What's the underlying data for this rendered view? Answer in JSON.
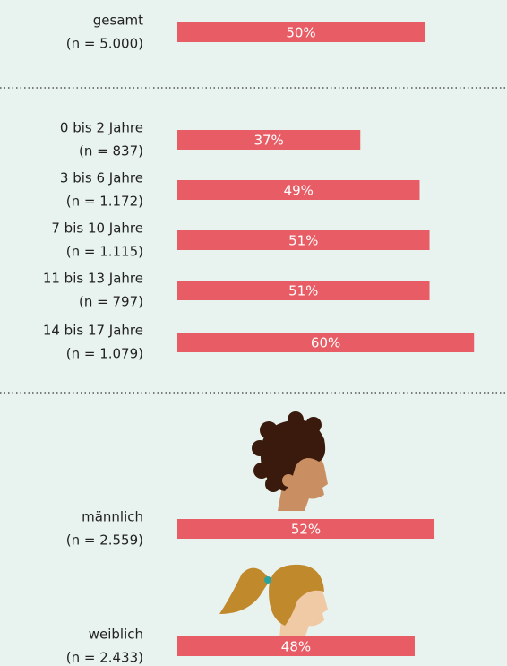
{
  "chart_data": [
    {
      "type": "bar",
      "color": "#e85d65",
      "categories": [
        "gesamt"
      ],
      "sample_labels": [
        "(n = 5.000)"
      ],
      "values": [
        50
      ],
      "value_labels": [
        "50%"
      ]
    },
    {
      "type": "bar",
      "color": "#e85d65",
      "categories": [
        "0 bis 2 Jahre",
        "3 bis 6 Jahre",
        "7 bis 10 Jahre",
        "11 bis 13 Jahre",
        "14 bis 17 Jahre"
      ],
      "sample_labels": [
        "(n = 837)",
        "(n = 1.172)",
        "(n = 1.115)",
        "(n = 797)",
        "(n = 1.079)"
      ],
      "values": [
        37,
        49,
        51,
        51,
        60
      ],
      "value_labels": [
        "37%",
        "49%",
        "51%",
        "51%",
        "60%"
      ]
    },
    {
      "type": "bar",
      "color": "#e85d65",
      "categories": [
        "männlich",
        "weiblich"
      ],
      "sample_labels": [
        "(n = 2.559)",
        "(n = 2.433)"
      ],
      "values": [
        52,
        48
      ],
      "value_labels": [
        "52%",
        "48%"
      ]
    }
  ]
}
